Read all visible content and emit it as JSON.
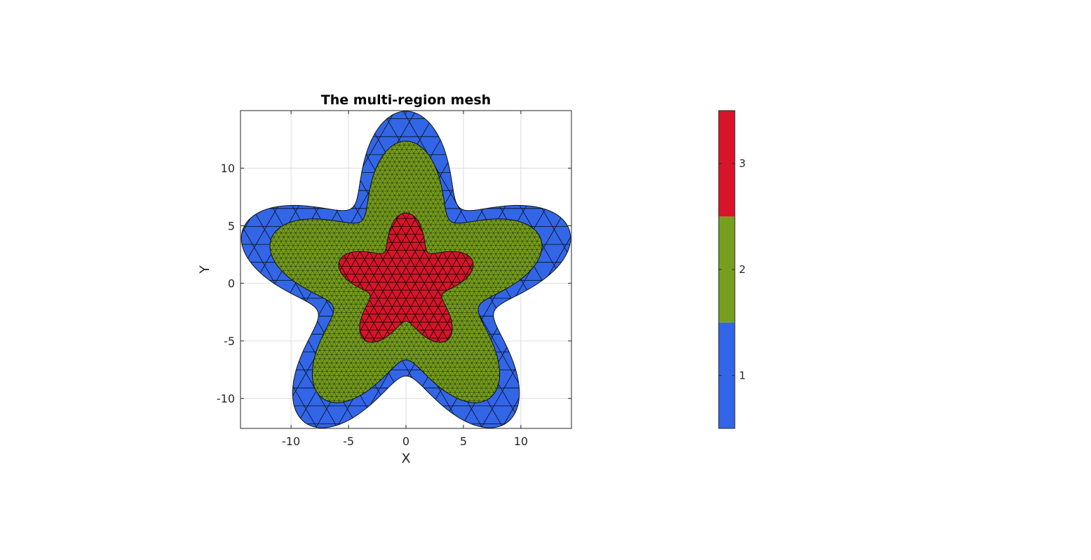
{
  "chart_data": {
    "type": "mesh",
    "title": "The multi-region mesh",
    "xlabel": "X",
    "ylabel": "Y",
    "xlim": [
      -14.4,
      14.4
    ],
    "ylim": [
      -12.6,
      15.0
    ],
    "xticks": [
      -10,
      -5,
      0,
      5,
      10
    ],
    "yticks": [
      -10,
      -5,
      0,
      5,
      10
    ],
    "xtick_labels": [
      "-10",
      "-5",
      "0",
      "5",
      "10"
    ],
    "ytick_labels": [
      "-10",
      "-5",
      "0",
      "5",
      "10"
    ],
    "grid": true,
    "shape": {
      "lobes": 5,
      "amplitude_fraction": 0.3,
      "orientation": "lobe-up"
    },
    "regions": [
      {
        "id": 1,
        "base_radius": 11.5,
        "color": "#3366e6",
        "mesh_spacing": 1.8
      },
      {
        "id": 2,
        "base_radius": 9.5,
        "color": "#779f1d",
        "mesh_spacing": 0.42
      },
      {
        "id": 3,
        "base_radius": 4.7,
        "color": "#d7142a",
        "mesh_spacing": 0.8
      }
    ],
    "colorbar": {
      "limits": [
        0.5,
        3.5
      ],
      "ticks": [
        1,
        2,
        3
      ],
      "tick_labels": [
        "1",
        "2",
        "3"
      ],
      "colors": [
        "#3366e6",
        "#779f1d",
        "#d7142a"
      ],
      "location": "right"
    }
  }
}
